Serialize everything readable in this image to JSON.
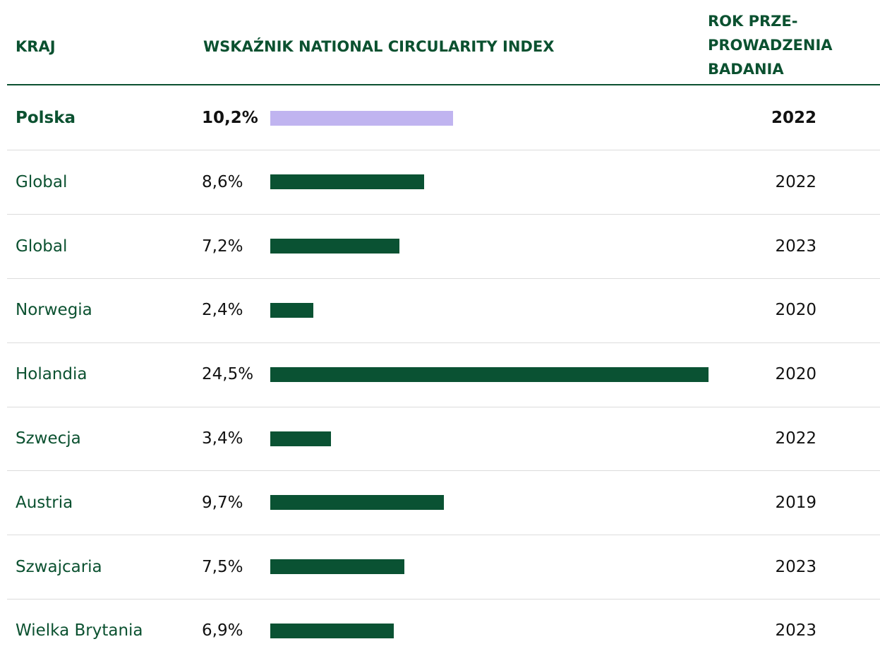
{
  "chart_data": {
    "type": "bar",
    "headers": {
      "country": "KRAJ",
      "index": "WSKAŹNIK NATIONAL CIRCULARITY INDEX",
      "year": [
        "ROK PRZE-",
        "PROWADZENIA",
        "BADANIA"
      ]
    },
    "categories": [
      "Polska",
      "Global",
      "Global",
      "Norwegia",
      "Holandia",
      "Szwecja",
      "Austria",
      "Szwajcaria",
      "Wielka Brytania"
    ],
    "values": [
      10.2,
      8.6,
      7.2,
      2.4,
      24.5,
      3.4,
      9.7,
      7.5,
      6.9
    ],
    "value_labels": [
      "10,2%",
      "8,6%",
      "7,2%",
      "2,4%",
      "24,5%",
      "3,4%",
      "9,7%",
      "7,5%",
      "6,9%"
    ],
    "years": [
      2022,
      2022,
      2023,
      2020,
      2020,
      2022,
      2019,
      2023,
      2023
    ],
    "colors": [
      "#c0b4f0",
      "#0a5233",
      "#0a5233",
      "#0a5233",
      "#0a5233",
      "#0a5233",
      "#0a5233",
      "#0a5233",
      "#0a5233"
    ]
  }
}
